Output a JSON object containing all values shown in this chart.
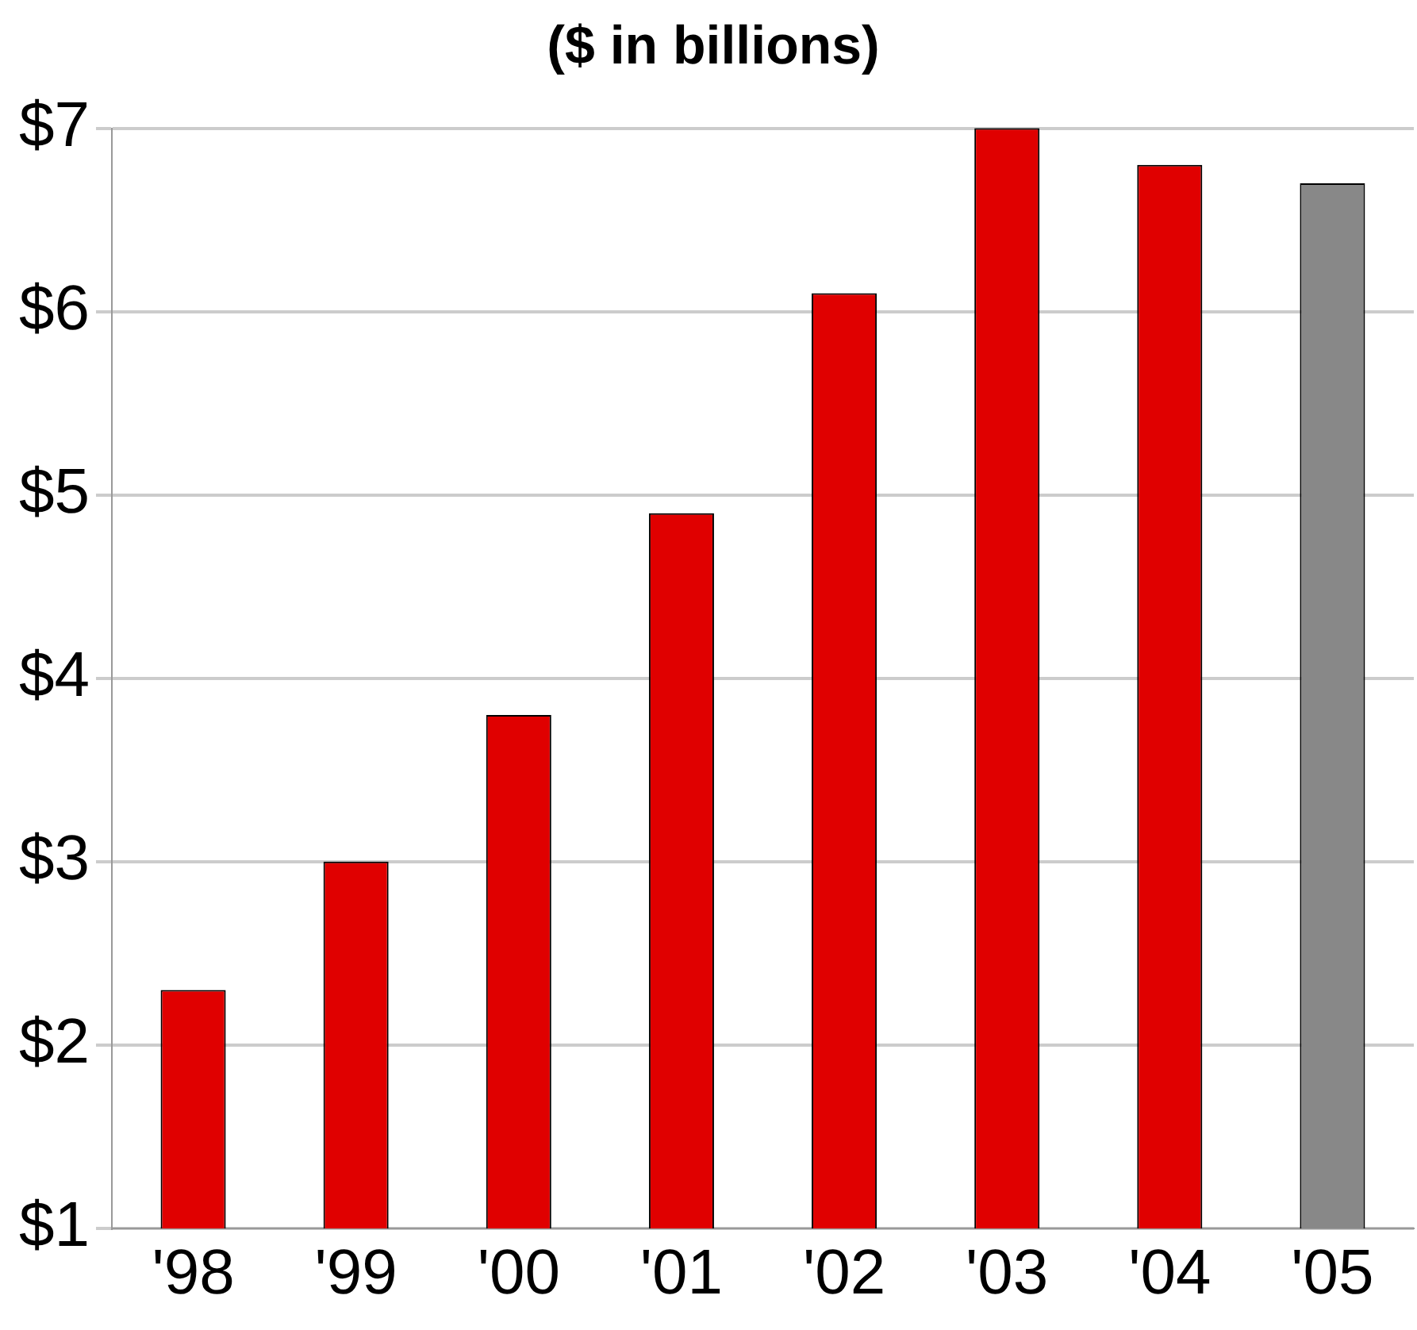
{
  "chart_data": {
    "type": "bar",
    "title": "($ in billions)",
    "categories": [
      "'98",
      "'99",
      "'00",
      "'01",
      "'02",
      "'03",
      "'04",
      "'05"
    ],
    "values": [
      2.3,
      3.0,
      3.8,
      4.9,
      6.1,
      7.0,
      6.8,
      6.7
    ],
    "colors": [
      "#e00000",
      "#e00000",
      "#e00000",
      "#e00000",
      "#e00000",
      "#e00000",
      "#e00000",
      "#888888"
    ],
    "ylim": [
      1,
      7
    ],
    "yticks": [
      {
        "value": 1,
        "label": "$1"
      },
      {
        "value": 2,
        "label": "$2"
      },
      {
        "value": 3,
        "label": "$3"
      },
      {
        "value": 4,
        "label": "$4"
      },
      {
        "value": 5,
        "label": "$5"
      },
      {
        "value": 6,
        "label": "$6"
      },
      {
        "value": 7,
        "label": "$7"
      }
    ],
    "grid": "y",
    "legend": false
  }
}
